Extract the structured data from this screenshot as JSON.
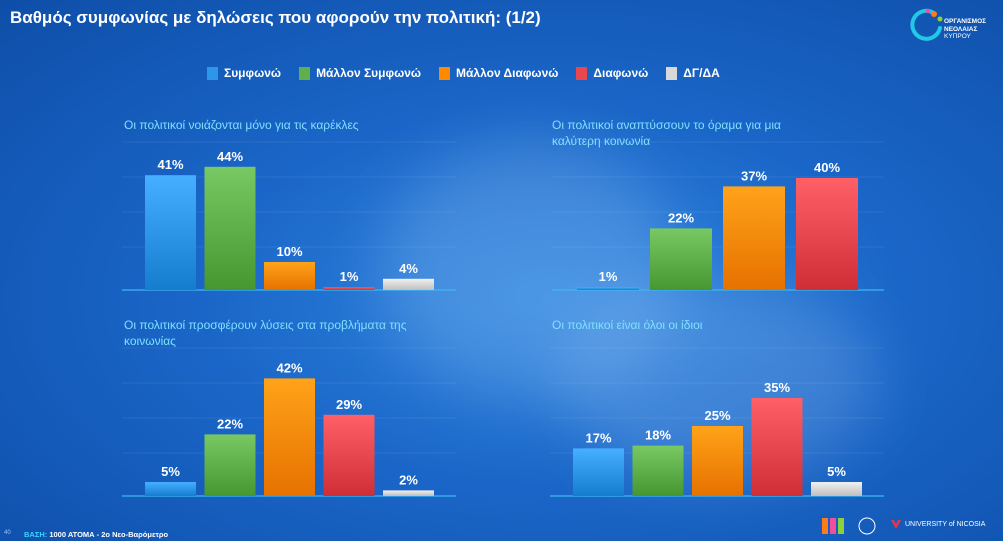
{
  "header": {
    "title": "Βαθμός συμφωνίας με δηλώσεις που αφορούν την πολιτική: (1/2)",
    "logo_text": [
      "ΟΡΓΑΝΙΣΜΟΣ",
      "ΝΕΟΛΑΙΑΣ",
      "ΚΥΠΡΟΥ"
    ]
  },
  "legend": [
    {
      "label": "Συμφωνώ",
      "color": "#2e96e6"
    },
    {
      "label": "Μάλλον Συμφωνώ",
      "color": "#5faf4a"
    },
    {
      "label": "Μάλλον Διαφωνώ",
      "color": "#ff8a00"
    },
    {
      "label": "Διαφωνώ",
      "color": "#e8474f"
    },
    {
      "label": "ΔΓ/ΔΑ",
      "color": "#d8d8d8"
    }
  ],
  "chart_data": [
    {
      "type": "bar",
      "title": "Οι πολιτικοί νοιάζονται μόνο για τις καρέκλες",
      "categories": [
        "Συμφωνώ",
        "Μάλλον Συμφωνώ",
        "Μάλλον Διαφωνώ",
        "Διαφωνώ",
        "ΔΓ/ΔΑ"
      ],
      "values": [
        41,
        44,
        10,
        1,
        4
      ],
      "labels": [
        "41%",
        "44%",
        "10%",
        "1%",
        "4%"
      ],
      "ylim": [
        0,
        50
      ]
    },
    {
      "type": "bar",
      "title": "Οι πολιτικοί αναπτύσσουν το όραμα για μια καλύτερη κοινωνία",
      "categories": [
        "Συμφωνώ",
        "Μάλλον Συμφωνώ",
        "Μάλλον Διαφωνώ",
        "Διαφωνώ"
      ],
      "values": [
        1,
        22,
        37,
        40
      ],
      "labels": [
        "1%",
        "22%",
        "37%",
        "40%"
      ],
      "ylim": [
        0,
        50
      ]
    },
    {
      "type": "bar",
      "title": "Οι πολιτικοί προσφέρουν λύσεις στα προβλήματα της κοινωνίας",
      "categories": [
        "Συμφωνώ",
        "Μάλλον Συμφωνώ",
        "Μάλλον Διαφωνώ",
        "Διαφωνώ",
        "ΔΓ/ΔΑ"
      ],
      "values": [
        5,
        22,
        42,
        29,
        2
      ],
      "labels": [
        "5%",
        "22%",
        "42%",
        "29%",
        "2%"
      ],
      "ylim": [
        0,
        50
      ]
    },
    {
      "type": "bar",
      "title": "Οι πολιτικοί είναι όλοι οι ίδιοι",
      "categories": [
        "Συμφωνώ",
        "Μάλλον Συμφωνώ",
        "Μάλλον Διαφωνώ",
        "Διαφωνώ",
        "ΔΓ/ΔΑ"
      ],
      "values": [
        17,
        18,
        25,
        35,
        5
      ],
      "labels": [
        "17%",
        "18%",
        "25%",
        "35%",
        "5%"
      ],
      "ylim": [
        0,
        50
      ]
    }
  ],
  "footer": {
    "page": "40",
    "base_key": "ΒΑΣΗ:",
    "base_value": "1000 ΑΤΟΜΑ - 2ο Νεο-Βαρόμετρο",
    "university": "UNIVERSITY of NICOSIA",
    "imr": "IMR"
  }
}
